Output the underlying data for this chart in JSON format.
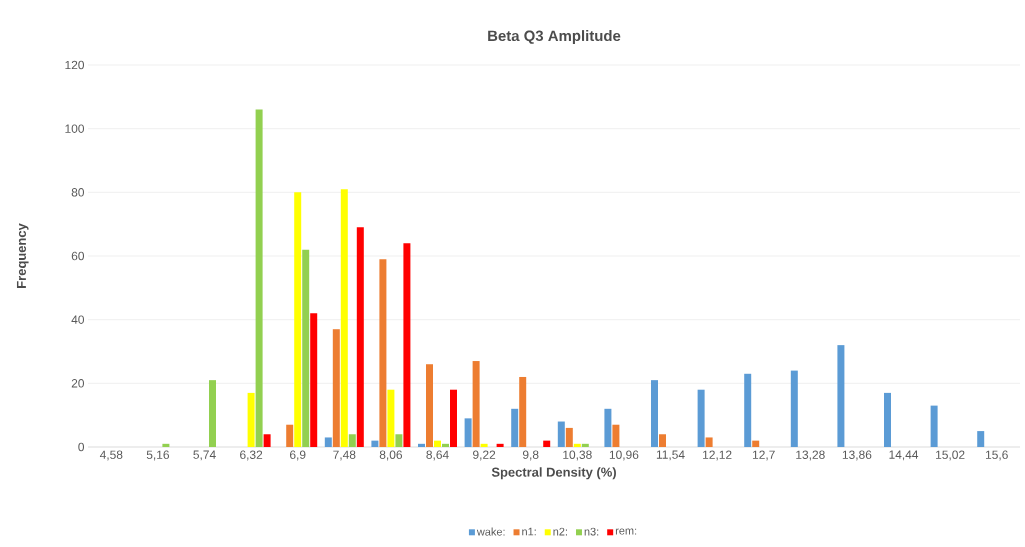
{
  "chart_data": {
    "type": "bar",
    "title": "Beta Q3 Amplitude",
    "xlabel": "Spectral Density (%)",
    "ylabel": "Frequency",
    "categories": [
      "4,58",
      "5,16",
      "5,74",
      "6,32",
      "6,9",
      "7,48",
      "8,06",
      "8,64",
      "9,22",
      "9,8",
      "10,38",
      "10,96",
      "11,54",
      "12,12",
      "12,7",
      "13,28",
      "13,86",
      "14,44",
      "15,02",
      "15,6"
    ],
    "series": [
      {
        "name": "wake:",
        "color": "#5b9bd5",
        "values": [
          0,
          0,
          0,
          0,
          0,
          3,
          2,
          1,
          9,
          12,
          8,
          12,
          21,
          18,
          23,
          24,
          32,
          17,
          13,
          5
        ]
      },
      {
        "name": "n1:",
        "color": "#ed7d31",
        "values": [
          0,
          0,
          0,
          0,
          7,
          37,
          59,
          26,
          27,
          22,
          6,
          7,
          4,
          3,
          2,
          0,
          0,
          0,
          0,
          0
        ]
      },
      {
        "name": "n2:",
        "color": "#ffff00",
        "values": [
          0,
          0,
          0,
          17,
          80,
          81,
          18,
          2,
          1,
          0,
          1,
          0,
          0,
          0,
          0,
          0,
          0,
          0,
          0,
          0
        ]
      },
      {
        "name": "n3:",
        "color": "#92d050",
        "values": [
          0,
          1,
          21,
          106,
          62,
          4,
          4,
          1,
          0,
          0,
          1,
          0,
          0,
          0,
          0,
          0,
          0,
          0,
          0,
          0
        ]
      },
      {
        "name": "rem:",
        "color": "#ff0000",
        "values": [
          0,
          0,
          0,
          4,
          42,
          69,
          64,
          18,
          1,
          2,
          0,
          0,
          0,
          0,
          0,
          0,
          0,
          0,
          0,
          0
        ]
      }
    ],
    "ylim": [
      0,
      120
    ],
    "yticks": [
      0,
      20,
      40,
      60,
      80,
      100,
      120
    ],
    "grid": "y",
    "legend": "bottom"
  }
}
